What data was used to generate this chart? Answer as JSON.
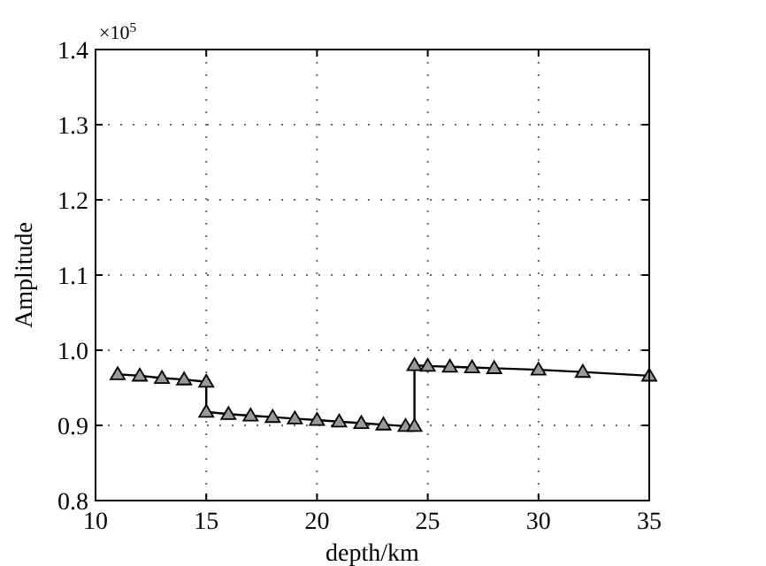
{
  "chart_data": {
    "type": "line",
    "xlabel": "depth/km",
    "ylabel": "Amplitude",
    "annotations": [
      "×10$^{5}$"
    ],
    "x": [
      11,
      12,
      13,
      14,
      15,
      15,
      16,
      17,
      18,
      19,
      20,
      21,
      22,
      23,
      24,
      24.4,
      24.4,
      25,
      26,
      27,
      28,
      30,
      32,
      35
    ],
    "series": [
      {
        "color": "#000000",
        "values": [
          0.968,
          0.966,
          0.963,
          0.961,
          0.958,
          0.918,
          0.915,
          0.913,
          0.911,
          0.909,
          0.907,
          0.905,
          0.903,
          0.901,
          0.899,
          0.899,
          0.98,
          0.979,
          0.978,
          0.977,
          0.976,
          0.974,
          0.971,
          0.966
        ]
      }
    ],
    "xlim": [
      10,
      35
    ],
    "xticks": [
      10,
      15,
      20,
      25,
      30,
      35
    ],
    "ylim": [
      0.8,
      1.4
    ],
    "yticks": [
      {
        "value": 0.8,
        "label": "0.8"
      },
      {
        "value": 0.9,
        "label": "0.9"
      },
      {
        "value": 1.0,
        "label": "1.0"
      },
      {
        "value": 1.1,
        "label": "1.1"
      },
      {
        "value": 1.2,
        "label": "1.2"
      },
      {
        "value": 1.3,
        "label": "1.3"
      },
      {
        "value": 1.4,
        "label": "1.4"
      }
    ],
    "grid": true,
    "marker": "triangle",
    "line_style": "solid"
  }
}
